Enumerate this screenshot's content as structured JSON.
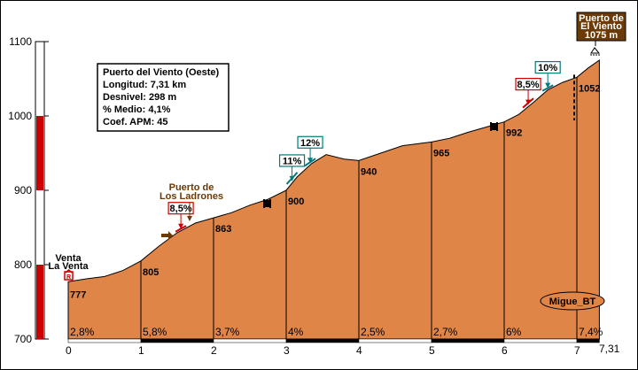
{
  "chart_data": {
    "type": "area",
    "title": "Puerto del Viento (Oeste)",
    "info": {
      "title": "Puerto del Viento (Oeste)",
      "longitud": "Longitud: 7,31 km",
      "desnivel": "Desnivel: 298 m",
      "medio": "% Medio: 4,1%",
      "coef": "Coef. APM: 45"
    },
    "xlim": [
      0,
      7.31
    ],
    "ylim": [
      700,
      1100
    ],
    "x_ticks": [
      "0",
      "1",
      "2",
      "3",
      "4",
      "5",
      "6",
      "7"
    ],
    "x_end_label": "7,31",
    "y_ticks": [
      "700",
      "800",
      "900",
      "1000",
      "1100"
    ],
    "profile": [
      [
        0.0,
        777
      ],
      [
        0.25,
        781
      ],
      [
        0.5,
        784
      ],
      [
        0.75,
        792
      ],
      [
        1.0,
        805
      ],
      [
        1.25,
        825
      ],
      [
        1.5,
        843
      ],
      [
        1.75,
        856
      ],
      [
        2.0,
        863
      ],
      [
        2.25,
        870
      ],
      [
        2.5,
        880
      ],
      [
        2.75,
        888
      ],
      [
        3.0,
        900
      ],
      [
        3.15,
        918
      ],
      [
        3.35,
        936
      ],
      [
        3.55,
        948
      ],
      [
        3.8,
        942
      ],
      [
        4.0,
        940
      ],
      [
        4.3,
        950
      ],
      [
        4.6,
        960
      ],
      [
        5.0,
        965
      ],
      [
        5.25,
        970
      ],
      [
        5.5,
        978
      ],
      [
        5.75,
        985
      ],
      [
        6.0,
        992
      ],
      [
        6.2,
        1002
      ],
      [
        6.4,
        1018
      ],
      [
        6.6,
        1035
      ],
      [
        6.8,
        1045
      ],
      [
        7.0,
        1052
      ],
      [
        7.15,
        1064
      ],
      [
        7.31,
        1075
      ]
    ],
    "km_points": [
      {
        "x": 0,
        "y": 777,
        "label": "777"
      },
      {
        "x": 1,
        "y": 805,
        "label": "805"
      },
      {
        "x": 2,
        "y": 863,
        "label": "863"
      },
      {
        "x": 3,
        "y": 900,
        "label": "900"
      },
      {
        "x": 4,
        "y": 940,
        "label": "940"
      },
      {
        "x": 5,
        "y": 965,
        "label": "965"
      },
      {
        "x": 6,
        "y": 992,
        "label": "992"
      },
      {
        "x": 7,
        "y": 1052,
        "label": "1052"
      }
    ],
    "segment_grades": [
      {
        "x": 0,
        "label": "2,8%"
      },
      {
        "x": 1,
        "label": "5,8%"
      },
      {
        "x": 2,
        "label": "3,7%"
      },
      {
        "x": 3,
        "label": "4%"
      },
      {
        "x": 4,
        "label": "2,5%"
      },
      {
        "x": 5,
        "label": "2,7%"
      },
      {
        "x": 6,
        "label": "6%"
      },
      {
        "x": 7,
        "label": "7,4%"
      }
    ],
    "ramp_labels": [
      {
        "x": 1.55,
        "label": "8,5%",
        "color": "#cc0000"
      },
      {
        "x": 3.08,
        "label": "11%",
        "color": "#007a7a"
      },
      {
        "x": 3.33,
        "label": "12%",
        "color": "#007a7a"
      },
      {
        "x": 6.33,
        "label": "8,5%",
        "color": "#cc0000"
      },
      {
        "x": 6.6,
        "label": "10%",
        "color": "#007a7a"
      }
    ],
    "places": {
      "start_line1": "Venta",
      "start_line2": "La Venta",
      "mid_line1": "Puerto de",
      "mid_line2": "Los Ladrones",
      "summit_line1": "Puerto de",
      "summit_line2": "El Viento",
      "summit_line3": "1075 m"
    },
    "author": "Migue_BT",
    "colors": {
      "fill": "#e08548",
      "brown": "#6b3a07",
      "red": "#cc0000",
      "teal": "#007a7a"
    }
  }
}
